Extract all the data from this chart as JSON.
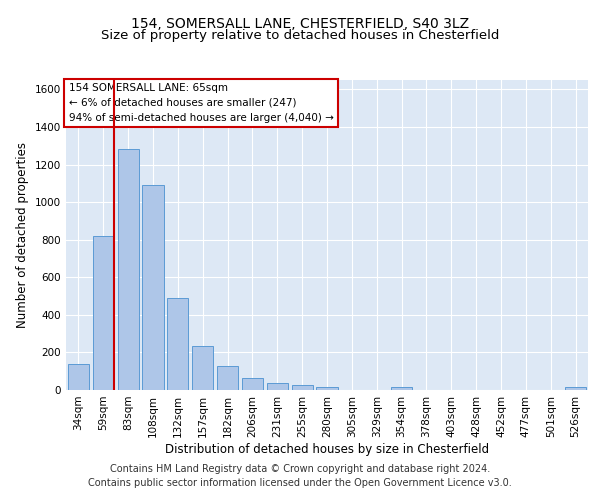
{
  "title1": "154, SOMERSALL LANE, CHESTERFIELD, S40 3LZ",
  "title2": "Size of property relative to detached houses in Chesterfield",
  "xlabel": "Distribution of detached houses by size in Chesterfield",
  "ylabel": "Number of detached properties",
  "footnote1": "Contains HM Land Registry data © Crown copyright and database right 2024.",
  "footnote2": "Contains public sector information licensed under the Open Government Licence v3.0.",
  "categories": [
    "34sqm",
    "59sqm",
    "83sqm",
    "108sqm",
    "132sqm",
    "157sqm",
    "182sqm",
    "206sqm",
    "231sqm",
    "255sqm",
    "280sqm",
    "305sqm",
    "329sqm",
    "354sqm",
    "378sqm",
    "403sqm",
    "428sqm",
    "452sqm",
    "477sqm",
    "501sqm",
    "526sqm"
  ],
  "values": [
    140,
    820,
    1285,
    1090,
    490,
    235,
    128,
    65,
    38,
    25,
    15,
    0,
    0,
    15,
    0,
    0,
    0,
    0,
    0,
    0,
    15
  ],
  "bar_color": "#aec6e8",
  "bar_edge_color": "#5b9bd5",
  "vline_x": 1.45,
  "vline_color": "#cc0000",
  "annotation_text": "154 SOMERSALL LANE: 65sqm\n← 6% of detached houses are smaller (247)\n94% of semi-detached houses are larger (4,040) →",
  "annotation_box_color": "#ffffff",
  "annotation_box_edge": "#cc0000",
  "ylim": [
    0,
    1650
  ],
  "yticks": [
    0,
    200,
    400,
    600,
    800,
    1000,
    1200,
    1400,
    1600
  ],
  "background_color": "#dde8f5",
  "grid_color": "#ffffff",
  "title1_fontsize": 10,
  "title2_fontsize": 9.5,
  "label_fontsize": 8.5,
  "tick_fontsize": 7.5,
  "footnote_fontsize": 7
}
